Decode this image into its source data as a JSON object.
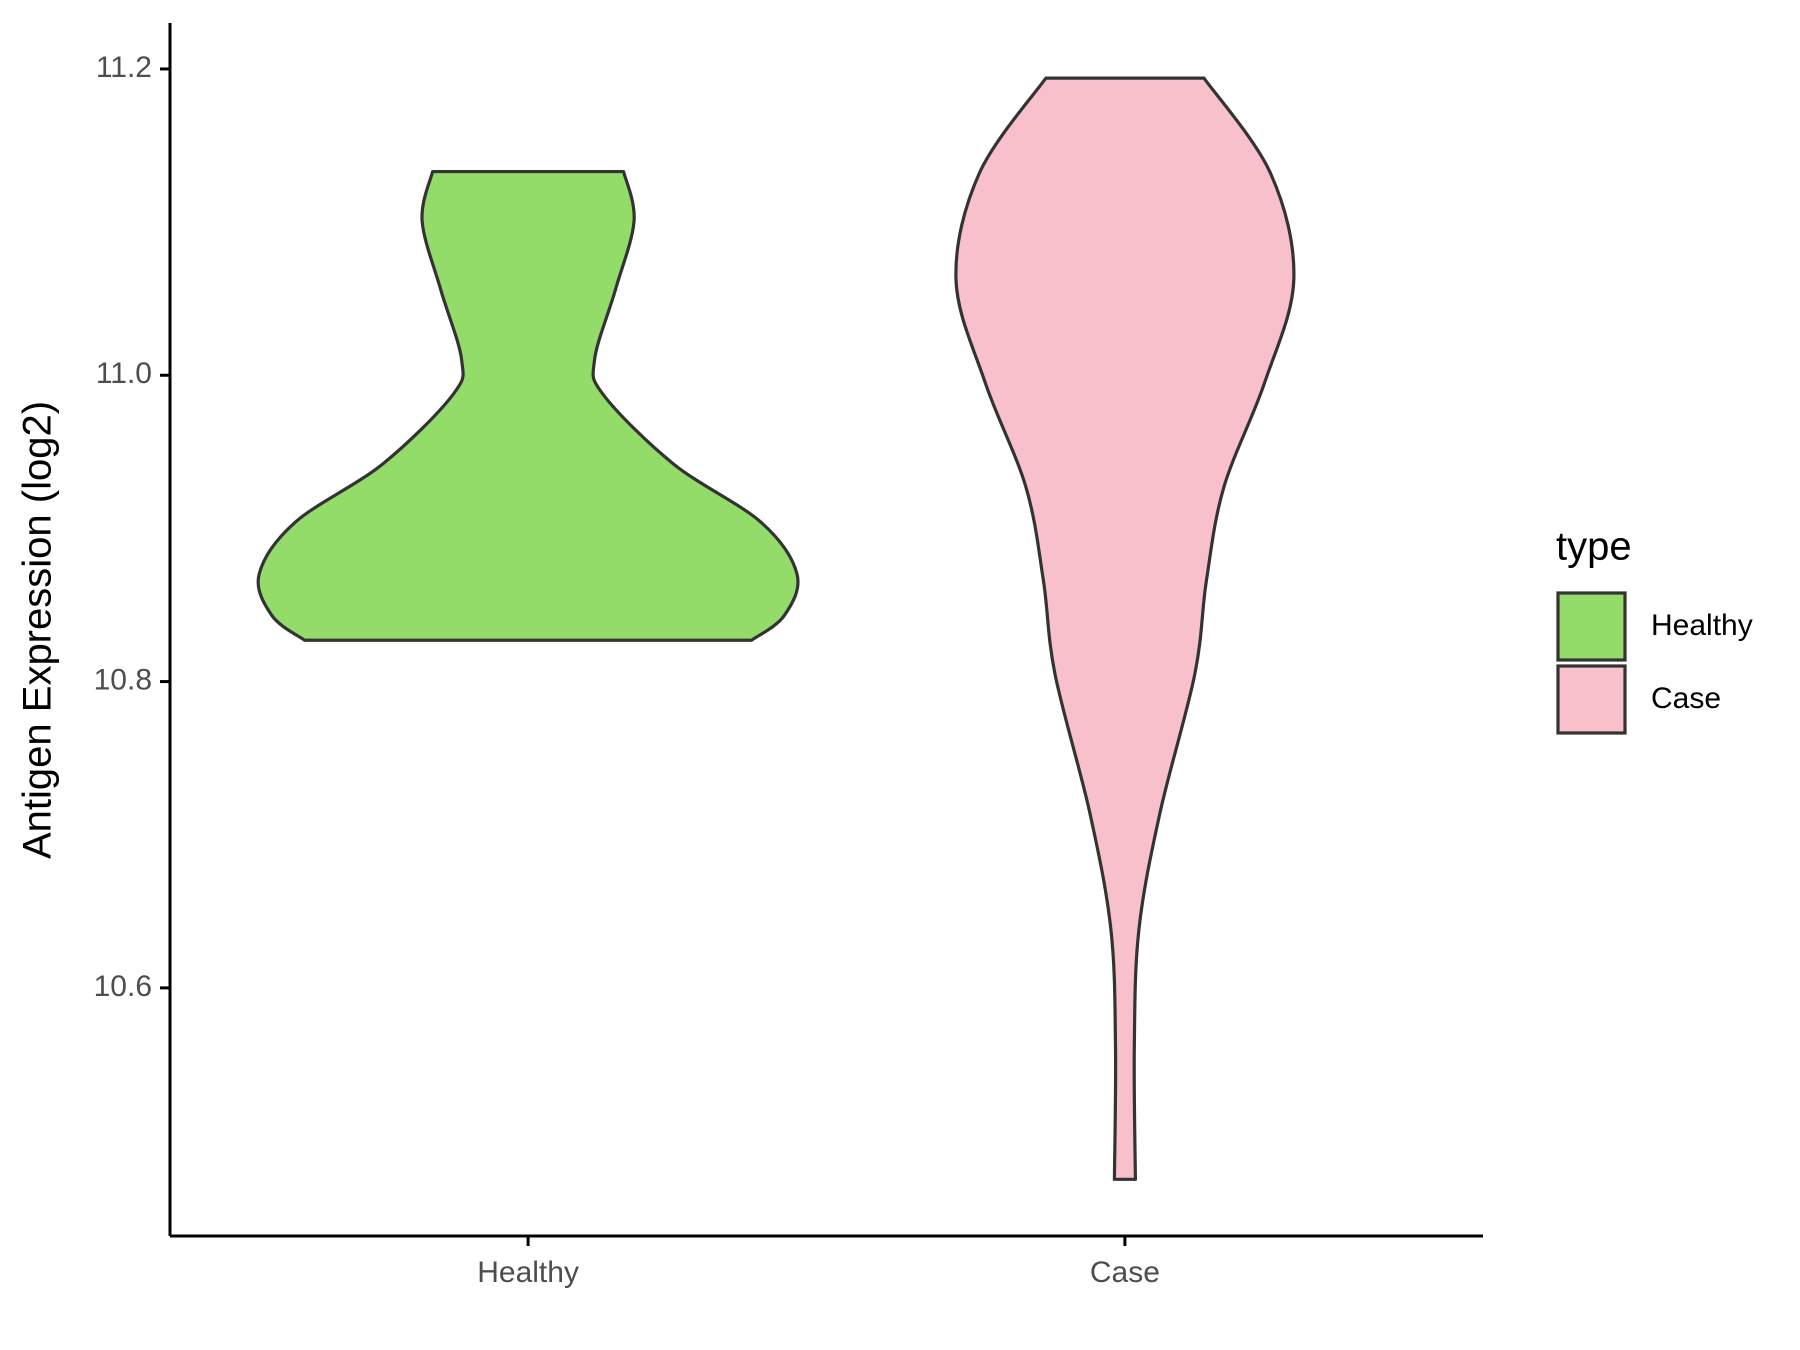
{
  "chart_data": {
    "type": "violin",
    "y_label": "Antigen Expression (log2)",
    "categories": [
      "Healthy",
      "Case"
    ],
    "legend_title": "type",
    "legend": "right",
    "ylim": [
      10.438,
      11.23
    ],
    "yticks": [
      10.6,
      10.8,
      {
        "value": 11.0,
        "label": "11.0"
      },
      11.2
    ],
    "series": [
      {
        "name": "Healthy",
        "color": "#93dc6a",
        "y": [
          11.133,
          11.101,
          11.056,
          11.01,
          10.987,
          10.942,
          10.904,
          10.87,
          10.843,
          10.827
        ],
        "density": [
          0.355,
          0.394,
          0.325,
          0.247,
          0.281,
          0.541,
          0.866,
          1.0,
          0.952,
          0.831
        ]
      },
      {
        "name": "Case",
        "color": "#f8c0cb",
        "y": [
          11.194,
          11.132,
          11.063,
          10.995,
          10.927,
          10.866,
          10.805,
          10.714,
          10.638,
          10.562,
          10.475
        ],
        "density": [
          0.294,
          0.541,
          0.628,
          0.519,
          0.368,
          0.303,
          0.26,
          0.13,
          0.052,
          0.035,
          0.039
        ]
      }
    ]
  }
}
